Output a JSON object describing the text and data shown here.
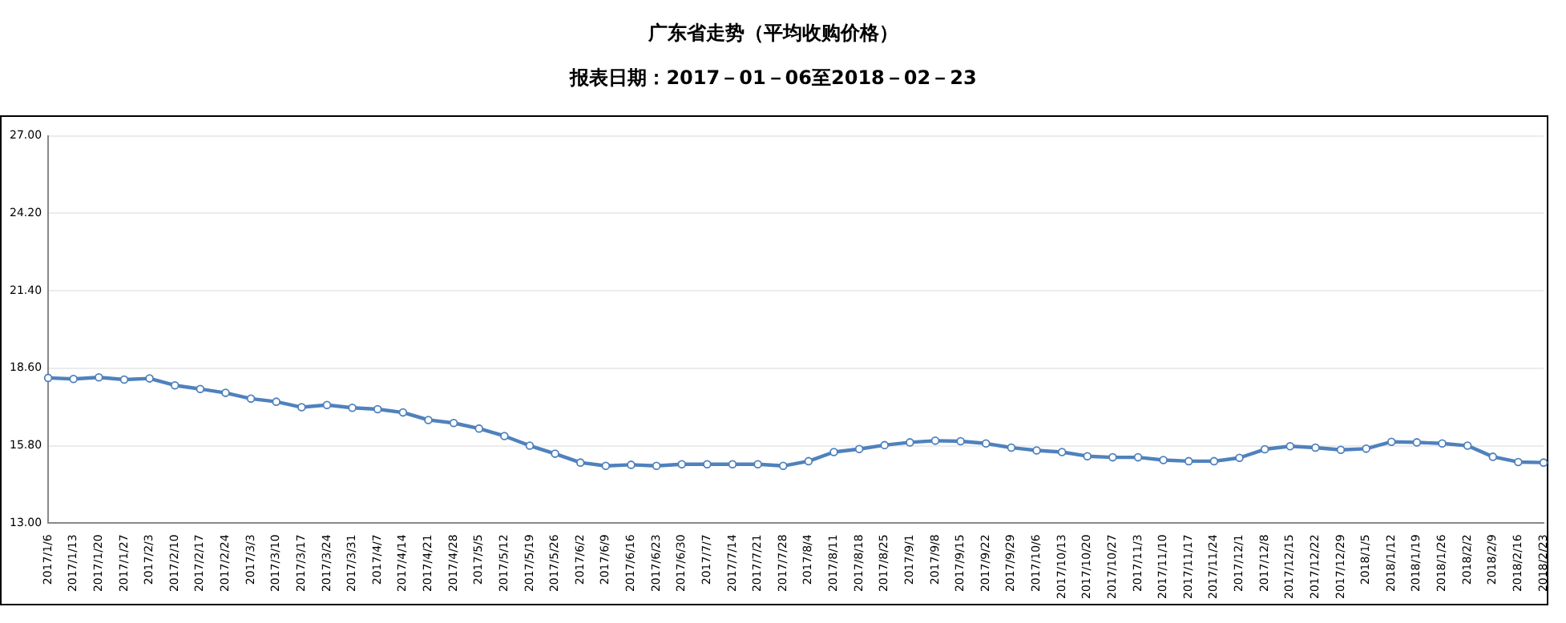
{
  "chart_data": {
    "type": "line",
    "title": "广东省走势（平均收购价格）",
    "subtitle": "报表日期：2017－01－06至2018－02－23",
    "categories": [
      "2017/1/6",
      "2017/1/13",
      "2017/1/20",
      "2017/1/27",
      "2017/2/3",
      "2017/2/10",
      "2017/2/17",
      "2017/2/24",
      "2017/3/3",
      "2017/3/10",
      "2017/3/17",
      "2017/3/24",
      "2017/3/31",
      "2017/4/7",
      "2017/4/14",
      "2017/4/21",
      "2017/4/28",
      "2017/5/5",
      "2017/5/12",
      "2017/5/19",
      "2017/5/26",
      "2017/6/2",
      "2017/6/9",
      "2017/6/16",
      "2017/6/23",
      "2017/6/30",
      "2017/7/7",
      "2017/7/14",
      "2017/7/21",
      "2017/7/28",
      "2017/8/4",
      "2017/8/11",
      "2017/8/18",
      "2017/8/25",
      "2017/9/1",
      "2017/9/8",
      "2017/9/15",
      "2017/9/22",
      "2017/9/29",
      "2017/10/6",
      "2017/10/13",
      "2017/10/20",
      "2017/10/27",
      "2017/11/3",
      "2017/11/10",
      "2017/11/17",
      "2017/11/24",
      "2017/12/1",
      "2017/12/8",
      "2017/12/15",
      "2017/12/22",
      "2017/12/29",
      "2018/1/5",
      "2018/1/12",
      "2018/1/19",
      "2018/1/26",
      "2018/2/2",
      "2018/2/9",
      "2018/2/16",
      "2018/2/23"
    ],
    "series": [
      {
        "color": "#4f81bd",
        "values": [
          18.25,
          18.21,
          18.27,
          18.19,
          18.23,
          17.98,
          17.85,
          17.71,
          17.5,
          17.39,
          17.19,
          17.27,
          17.17,
          17.12,
          17.0,
          16.73,
          16.62,
          16.42,
          16.15,
          15.8,
          15.51,
          15.19,
          15.07,
          15.11,
          15.07,
          15.13,
          15.13,
          15.13,
          15.13,
          15.07,
          15.24,
          15.57,
          15.68,
          15.82,
          15.92,
          15.98,
          15.96,
          15.88,
          15.73,
          15.63,
          15.57,
          15.42,
          15.38,
          15.38,
          15.28,
          15.24,
          15.24,
          15.36,
          15.67,
          15.78,
          15.73,
          15.65,
          15.69,
          15.94,
          15.92,
          15.88,
          15.8,
          15.4,
          15.21,
          15.19
        ]
      }
    ],
    "ylim": [
      13,
      27
    ],
    "yticks": [
      {
        "value": 13,
        "label": "13.00"
      },
      {
        "value": 15.8,
        "label": "15.80"
      },
      {
        "value": 18.6,
        "label": "18.60"
      },
      {
        "value": 21.4,
        "label": "21.40"
      },
      {
        "value": 24.2,
        "label": "24.20"
      },
      {
        "value": 27,
        "label": "27.00"
      }
    ],
    "grid": "y",
    "legend": false,
    "marker": "circle",
    "line_style": "solid"
  }
}
